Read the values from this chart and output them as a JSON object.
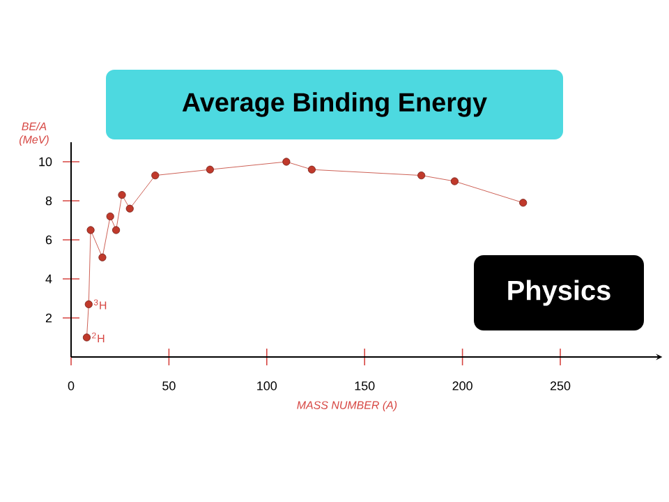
{
  "chart_data": {
    "type": "line",
    "title": "Average Binding Energy",
    "xlabel": "MASS NUMBER (A)",
    "ylabel": "BE/A (MeV)",
    "xlim": [
      0,
      300
    ],
    "ylim": [
      0,
      11
    ],
    "xticks": [
      0,
      50,
      100,
      150,
      200,
      250
    ],
    "yticks": [
      2,
      4,
      6,
      8,
      10
    ],
    "marker": "circle",
    "series": [
      {
        "color": "#c0392b",
        "x": [
          8,
          9,
          10,
          16,
          20,
          23,
          26,
          30,
          43,
          71,
          110,
          123,
          179,
          196,
          231
        ],
        "values": [
          1.0,
          2.7,
          6.5,
          5.1,
          7.2,
          6.5,
          8.3,
          7.6,
          9.3,
          9.6,
          10.0,
          9.6,
          9.3,
          9.0,
          7.9
        ]
      }
    ],
    "annotations": [
      {
        "text": "$^{2}$H",
        "x": 8,
        "y": 1.0
      },
      {
        "text": "$^{3}$H",
        "x": 9,
        "y": 2.7
      },
      "Physics"
    ]
  }
}
